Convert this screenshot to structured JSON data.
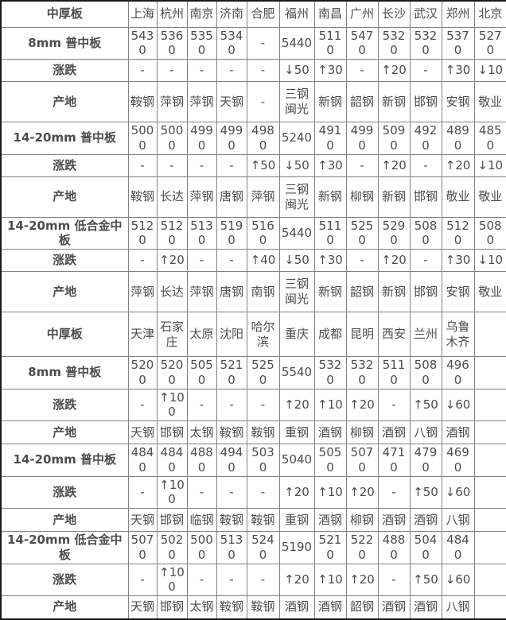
{
  "colors": {
    "section_title_red": "#ff0000",
    "city_blue": "#0000ff",
    "up_red": "#ff0000",
    "down_green": "#008000",
    "value_gray": "#4d4d4d",
    "grid_line": "#828282",
    "outer_border": "#1a1a1a"
  },
  "table": {
    "sections": [
      {
        "header_label": "中厚板",
        "cities": [
          "上海",
          "杭州",
          "南京",
          "济南",
          "合肥",
          "福州",
          "南昌",
          "广州",
          "长沙",
          "武汉",
          "郑州",
          "北京"
        ],
        "rows": [
          {
            "label": "8mm 普中板",
            "type": "price",
            "values": [
              "5430",
              "5360",
              "5350",
              "5340",
              "-",
              "5440",
              "5110",
              "5470",
              "5320",
              "5320",
              "5370",
              "5270"
            ]
          },
          {
            "label": "涨跌",
            "type": "change",
            "values": [
              "-",
              "-",
              "-",
              "-",
              "-",
              "↓50",
              "↑30",
              "-",
              "↑20",
              "-",
              "↑30",
              "↓10"
            ]
          },
          {
            "label": "产地",
            "type": "origin",
            "values": [
              "鞍钢",
              "萍钢",
              "萍钢",
              "天钢",
              "-",
              "三钢闽光",
              "新钢",
              "韶钢",
              "新钢",
              "邯钢",
              "安钢",
              "敬业"
            ]
          },
          {
            "label": "14-20mm 普中板",
            "type": "price",
            "values": [
              "5000",
              "5000",
              "4990",
              "4990",
              "4980",
              "5240",
              "4910",
              "4990",
              "5090",
              "4920",
              "4890",
              "4850"
            ]
          },
          {
            "label": "涨跌",
            "type": "change",
            "values": [
              "-",
              "-",
              "-",
              "-",
              "↑50",
              "↓50",
              "↑30",
              "-",
              "↑20",
              "-",
              "↑20",
              "↓10"
            ]
          },
          {
            "label": "产地",
            "type": "origin",
            "values": [
              "鞍钢",
              "长达",
              "萍钢",
              "唐钢",
              "萍钢",
              "三钢闽光",
              "新钢",
              "柳钢",
              "新钢",
              "邯钢",
              "敬业",
              "敬业"
            ]
          },
          {
            "label": "14-20mm 低合金中板",
            "type": "price",
            "values": [
              "5120",
              "5120",
              "5130",
              "5190",
              "5160",
              "5440",
              "5110",
              "5250",
              "5290",
              "5080",
              "5120",
              "5080"
            ]
          },
          {
            "label": "涨跌",
            "type": "change",
            "values": [
              "-",
              "↑20",
              "-",
              "-",
              "↑40",
              "↓50",
              "↑30",
              "-",
              "↑20",
              "-",
              "↑30",
              "↓10"
            ]
          },
          {
            "label": "产地",
            "type": "origin",
            "values": [
              "萍钢",
              "长达",
              "萍钢",
              "唐钢",
              "南钢",
              "三钢闽光",
              "新钢",
              "韶钢",
              "新钢",
              "邯钢",
              "安钢",
              "敬业"
            ]
          }
        ]
      },
      {
        "header_label": "中厚板",
        "cities": [
          "天津",
          "石家庄",
          "太原",
          "沈阳",
          "哈尔滨",
          "重庆",
          "成都",
          "昆明",
          "西安",
          "兰州",
          "乌鲁木齐",
          ""
        ],
        "rows": [
          {
            "label": "8mm 普中板",
            "type": "price",
            "values": [
              "5200",
              "5200",
              "5050",
              "5210",
              "5250",
              "5540",
              "5320",
              "5320",
              "5110",
              "5080",
              "4960",
              ""
            ]
          },
          {
            "label": "涨跌",
            "type": "change",
            "values": [
              "-",
              "↑100",
              "-",
              "-",
              "-",
              "↑20",
              "↑10",
              "↑20",
              "-",
              "↑50",
              "↓60",
              ""
            ]
          },
          {
            "label": "产地",
            "type": "origin",
            "values": [
              "天钢",
              "邯钢",
              "太钢",
              "鞍钢",
              "鞍钢",
              "重钢",
              "酒钢",
              "柳钢",
              "酒钢",
              "八钢",
              "酒钢",
              ""
            ]
          },
          {
            "label": "14-20mm 普中板",
            "type": "price",
            "values": [
              "4840",
              "4840",
              "4880",
              "4940",
              "5030",
              "5040",
              "5050",
              "5070",
              "4710",
              "4790",
              "4690",
              ""
            ]
          },
          {
            "label": "涨跌",
            "type": "change",
            "values": [
              "-",
              "↑100",
              "-",
              "-",
              "-",
              "↑20",
              "↑10",
              "↑20",
              "-",
              "↑50",
              "↓60",
              ""
            ]
          },
          {
            "label": "产地",
            "type": "origin",
            "values": [
              "天钢",
              "邯钢",
              "临钢",
              "鞍钢",
              "鞍钢",
              "重钢",
              "酒钢",
              "柳钢",
              "酒钢",
              "酒钢",
              "八钢",
              ""
            ]
          },
          {
            "label": "14-20mm 低合金中板",
            "type": "price",
            "values": [
              "5070",
              "5020",
              "5000",
              "5130",
              "5240",
              "5190",
              "5210",
              "5220",
              "4880",
              "5040",
              "4840",
              ""
            ]
          },
          {
            "label": "涨跌",
            "type": "change",
            "values": [
              "-",
              "↑100",
              "-",
              "-",
              "-",
              "↑20",
              "↑10",
              "↑20",
              "-",
              "↑50",
              "↓60",
              ""
            ]
          },
          {
            "label": "产地",
            "type": "origin",
            "values": [
              "天钢",
              "邯钢",
              "太钢",
              "鞍钢",
              "鞍钢",
              "酒钢",
              "酒钢",
              "韶钢",
              "酒钢",
              "酒钢",
              "八钢",
              ""
            ]
          }
        ]
      }
    ]
  }
}
